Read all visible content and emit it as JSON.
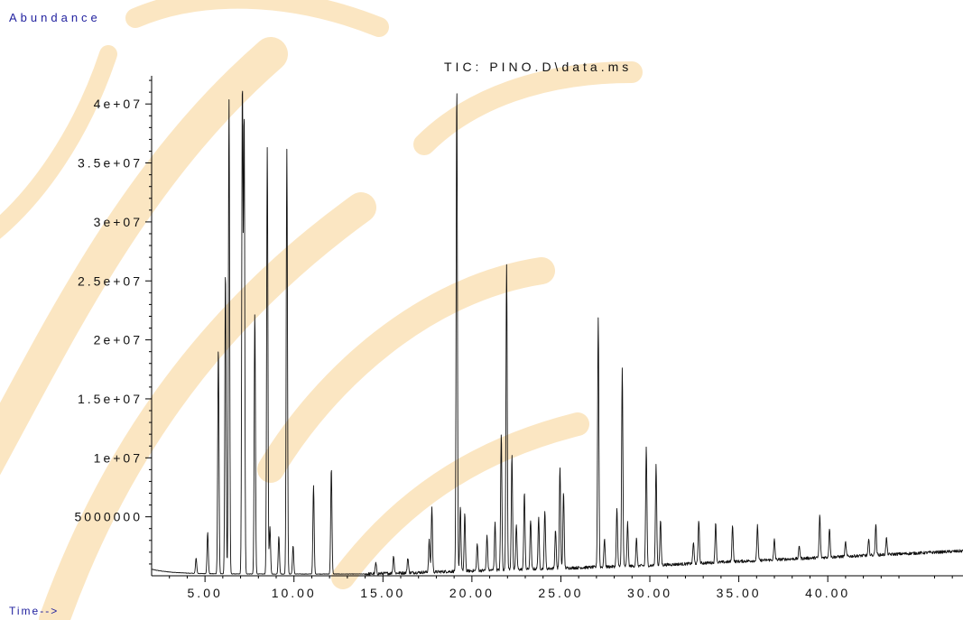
{
  "chart_data": {
    "type": "line",
    "title": "TIC: PINO.D\\data.ms",
    "ylabel": "Abundance",
    "xlabel": "Time-->",
    "xlim": [
      2.0,
      47.6
    ],
    "ylim": [
      0,
      43000000
    ],
    "x_ticks": [
      5,
      10,
      15,
      20,
      25,
      30,
      35,
      40
    ],
    "x_tick_labels": [
      "5.00",
      "10.00",
      "15.00",
      "20.00",
      "25.00",
      "30.00",
      "35.00",
      "40.00"
    ],
    "y_ticks": [
      5000000,
      10000000,
      15000000,
      20000000,
      25000000,
      30000000,
      35000000,
      40000000
    ],
    "y_tick_labels": [
      "5000000",
      "1e+07",
      "1.5e+07",
      "2e+07",
      "2.5e+07",
      "3e+07",
      "3.5e+07",
      "4e+07"
    ],
    "grid": false,
    "series": [
      {
        "peaks": [
          {
            "rt": 4.5,
            "height": 1300000
          },
          {
            "rt": 5.15,
            "height": 3500000
          },
          {
            "rt": 5.75,
            "height": 19200000
          },
          {
            "rt": 6.15,
            "height": 25800000
          },
          {
            "rt": 6.35,
            "height": 40200000
          },
          {
            "rt": 7.1,
            "height": 41400000
          },
          {
            "rt": 7.2,
            "height": 38700000
          },
          {
            "rt": 7.8,
            "height": 22200000
          },
          {
            "rt": 8.5,
            "height": 36200000
          },
          {
            "rt": 8.65,
            "height": 4000000
          },
          {
            "rt": 9.15,
            "height": 3200000
          },
          {
            "rt": 9.6,
            "height": 36000000
          },
          {
            "rt": 9.95,
            "height": 2400000
          },
          {
            "rt": 11.1,
            "height": 7500000
          },
          {
            "rt": 12.1,
            "height": 9000000
          },
          {
            "rt": 14.6,
            "height": 900000
          },
          {
            "rt": 15.6,
            "height": 1500000
          },
          {
            "rt": 16.4,
            "height": 1300000
          },
          {
            "rt": 17.6,
            "height": 2700000
          },
          {
            "rt": 17.75,
            "height": 5500000
          },
          {
            "rt": 19.15,
            "height": 41200000
          },
          {
            "rt": 19.35,
            "height": 5500000
          },
          {
            "rt": 19.6,
            "height": 4800000
          },
          {
            "rt": 20.3,
            "height": 2300000
          },
          {
            "rt": 20.85,
            "height": 3000000
          },
          {
            "rt": 21.3,
            "height": 4000000
          },
          {
            "rt": 21.65,
            "height": 11600000
          },
          {
            "rt": 21.95,
            "height": 26000000
          },
          {
            "rt": 22.25,
            "height": 9700000
          },
          {
            "rt": 22.5,
            "height": 3800000
          },
          {
            "rt": 22.95,
            "height": 6600000
          },
          {
            "rt": 23.3,
            "height": 4200000
          },
          {
            "rt": 23.75,
            "height": 4300000
          },
          {
            "rt": 24.1,
            "height": 5000000
          },
          {
            "rt": 24.7,
            "height": 3300000
          },
          {
            "rt": 24.95,
            "height": 8600000
          },
          {
            "rt": 25.15,
            "height": 6500000
          },
          {
            "rt": 27.1,
            "height": 21200000
          },
          {
            "rt": 27.45,
            "height": 2400000
          },
          {
            "rt": 28.15,
            "height": 4900000
          },
          {
            "rt": 28.45,
            "height": 16800000
          },
          {
            "rt": 28.75,
            "height": 3700000
          },
          {
            "rt": 29.25,
            "height": 2300000
          },
          {
            "rt": 29.8,
            "height": 10000000
          },
          {
            "rt": 30.35,
            "height": 8500000
          },
          {
            "rt": 30.6,
            "height": 3800000
          },
          {
            "rt": 32.45,
            "height": 1800000
          },
          {
            "rt": 32.75,
            "height": 3700000
          },
          {
            "rt": 33.7,
            "height": 3400000
          },
          {
            "rt": 34.65,
            "height": 3100000
          },
          {
            "rt": 36.05,
            "height": 3000000
          },
          {
            "rt": 37.0,
            "height": 1700000
          },
          {
            "rt": 38.4,
            "height": 1100000
          },
          {
            "rt": 39.55,
            "height": 3600000
          },
          {
            "rt": 40.1,
            "height": 2500000
          },
          {
            "rt": 41.0,
            "height": 1200000
          },
          {
            "rt": 42.3,
            "height": 1300000
          },
          {
            "rt": 42.7,
            "height": 2600000
          },
          {
            "rt": 43.3,
            "height": 1400000
          }
        ]
      }
    ]
  }
}
